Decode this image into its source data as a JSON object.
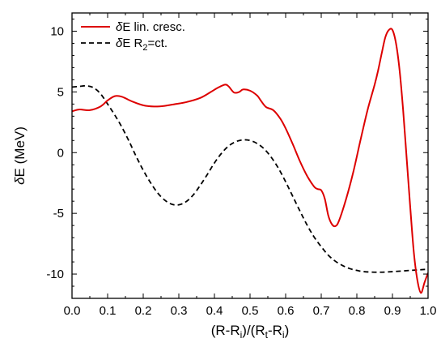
{
  "chart_data": {
    "type": "line",
    "xlabel": {
      "parts": [
        "(R-R",
        "i",
        ")/(R",
        "t",
        "-R",
        "i",
        ")"
      ]
    },
    "ylabel": {
      "parts": [
        "δ",
        "E (MeV)"
      ]
    },
    "xlim": [
      0.0,
      1.0
    ],
    "ylim": [
      -12,
      11.5
    ],
    "x_ticks": [
      0.0,
      0.1,
      0.2,
      0.3,
      0.4,
      0.5,
      0.6,
      0.7,
      0.8,
      0.9,
      1.0
    ],
    "x_tick_labels": [
      "0.0",
      "0.1",
      "0.2",
      "0.3",
      "0.4",
      "0.5",
      "0.6",
      "0.7",
      "0.8",
      "0.9",
      "1.0"
    ],
    "y_ticks": [
      -10,
      -5,
      0,
      5,
      10
    ],
    "y_tick_labels": [
      "-10",
      "-5",
      "0",
      "5",
      "10"
    ],
    "grid": false,
    "legend_position": "top-left",
    "series": [
      {
        "name": "δE lin. cresc.",
        "legend": {
          "parts": [
            "δ",
            "E lin. cresc."
          ]
        },
        "color": "#dd0000",
        "style": "solid",
        "points": [
          [
            0.0,
            3.4
          ],
          [
            0.02,
            3.55
          ],
          [
            0.05,
            3.5
          ],
          [
            0.08,
            3.8
          ],
          [
            0.1,
            4.3
          ],
          [
            0.12,
            4.65
          ],
          [
            0.14,
            4.6
          ],
          [
            0.17,
            4.2
          ],
          [
            0.2,
            3.9
          ],
          [
            0.23,
            3.8
          ],
          [
            0.26,
            3.85
          ],
          [
            0.29,
            4.0
          ],
          [
            0.32,
            4.15
          ],
          [
            0.36,
            4.5
          ],
          [
            0.39,
            5.0
          ],
          [
            0.41,
            5.35
          ],
          [
            0.43,
            5.6
          ],
          [
            0.44,
            5.45
          ],
          [
            0.455,
            4.95
          ],
          [
            0.47,
            5.0
          ],
          [
            0.48,
            5.2
          ],
          [
            0.5,
            5.1
          ],
          [
            0.52,
            4.7
          ],
          [
            0.53,
            4.3
          ],
          [
            0.545,
            3.75
          ],
          [
            0.565,
            3.5
          ],
          [
            0.585,
            2.8
          ],
          [
            0.6,
            2.0
          ],
          [
            0.62,
            0.7
          ],
          [
            0.64,
            -0.7
          ],
          [
            0.66,
            -1.9
          ],
          [
            0.68,
            -2.8
          ],
          [
            0.69,
            -3.0
          ],
          [
            0.7,
            -3.1
          ],
          [
            0.71,
            -3.8
          ],
          [
            0.72,
            -5.2
          ],
          [
            0.73,
            -5.9
          ],
          [
            0.74,
            -6.05
          ],
          [
            0.75,
            -5.6
          ],
          [
            0.77,
            -3.8
          ],
          [
            0.79,
            -1.6
          ],
          [
            0.81,
            1.0
          ],
          [
            0.83,
            3.5
          ],
          [
            0.85,
            5.6
          ],
          [
            0.86,
            6.8
          ],
          [
            0.87,
            8.2
          ],
          [
            0.88,
            9.5
          ],
          [
            0.89,
            10.1
          ],
          [
            0.9,
            10.1
          ],
          [
            0.91,
            9.0
          ],
          [
            0.92,
            6.8
          ],
          [
            0.93,
            3.5
          ],
          [
            0.94,
            -0.5
          ],
          [
            0.95,
            -4.5
          ],
          [
            0.96,
            -8.2
          ],
          [
            0.97,
            -10.5
          ],
          [
            0.98,
            -11.55
          ],
          [
            0.99,
            -10.7
          ],
          [
            1.0,
            -9.9
          ]
        ]
      },
      {
        "name": "δE R2=ct.",
        "legend": {
          "parts": [
            "δ",
            "E R",
            "2",
            "=ct."
          ]
        },
        "color": "#000000",
        "style": "dashed",
        "points": [
          [
            0.0,
            5.4
          ],
          [
            0.02,
            5.45
          ],
          [
            0.04,
            5.5
          ],
          [
            0.06,
            5.35
          ],
          [
            0.08,
            4.85
          ],
          [
            0.1,
            4.0
          ],
          [
            0.12,
            3.1
          ],
          [
            0.14,
            2.1
          ],
          [
            0.16,
            0.95
          ],
          [
            0.18,
            -0.3
          ],
          [
            0.2,
            -1.45
          ],
          [
            0.22,
            -2.45
          ],
          [
            0.24,
            -3.3
          ],
          [
            0.26,
            -3.9
          ],
          [
            0.28,
            -4.25
          ],
          [
            0.3,
            -4.3
          ],
          [
            0.32,
            -4.05
          ],
          [
            0.34,
            -3.5
          ],
          [
            0.36,
            -2.7
          ],
          [
            0.38,
            -1.8
          ],
          [
            0.4,
            -0.85
          ],
          [
            0.42,
            -0.05
          ],
          [
            0.44,
            0.55
          ],
          [
            0.46,
            0.9
          ],
          [
            0.48,
            1.05
          ],
          [
            0.5,
            1.0
          ],
          [
            0.52,
            0.75
          ],
          [
            0.54,
            0.3
          ],
          [
            0.56,
            -0.4
          ],
          [
            0.58,
            -1.3
          ],
          [
            0.6,
            -2.4
          ],
          [
            0.62,
            -3.6
          ],
          [
            0.64,
            -4.8
          ],
          [
            0.66,
            -5.95
          ],
          [
            0.68,
            -6.95
          ],
          [
            0.7,
            -7.75
          ],
          [
            0.72,
            -8.45
          ],
          [
            0.74,
            -8.95
          ],
          [
            0.76,
            -9.3
          ],
          [
            0.78,
            -9.55
          ],
          [
            0.8,
            -9.7
          ],
          [
            0.82,
            -9.8
          ],
          [
            0.86,
            -9.85
          ],
          [
            0.9,
            -9.8
          ],
          [
            0.95,
            -9.7
          ],
          [
            1.0,
            -9.6
          ]
        ]
      }
    ]
  }
}
